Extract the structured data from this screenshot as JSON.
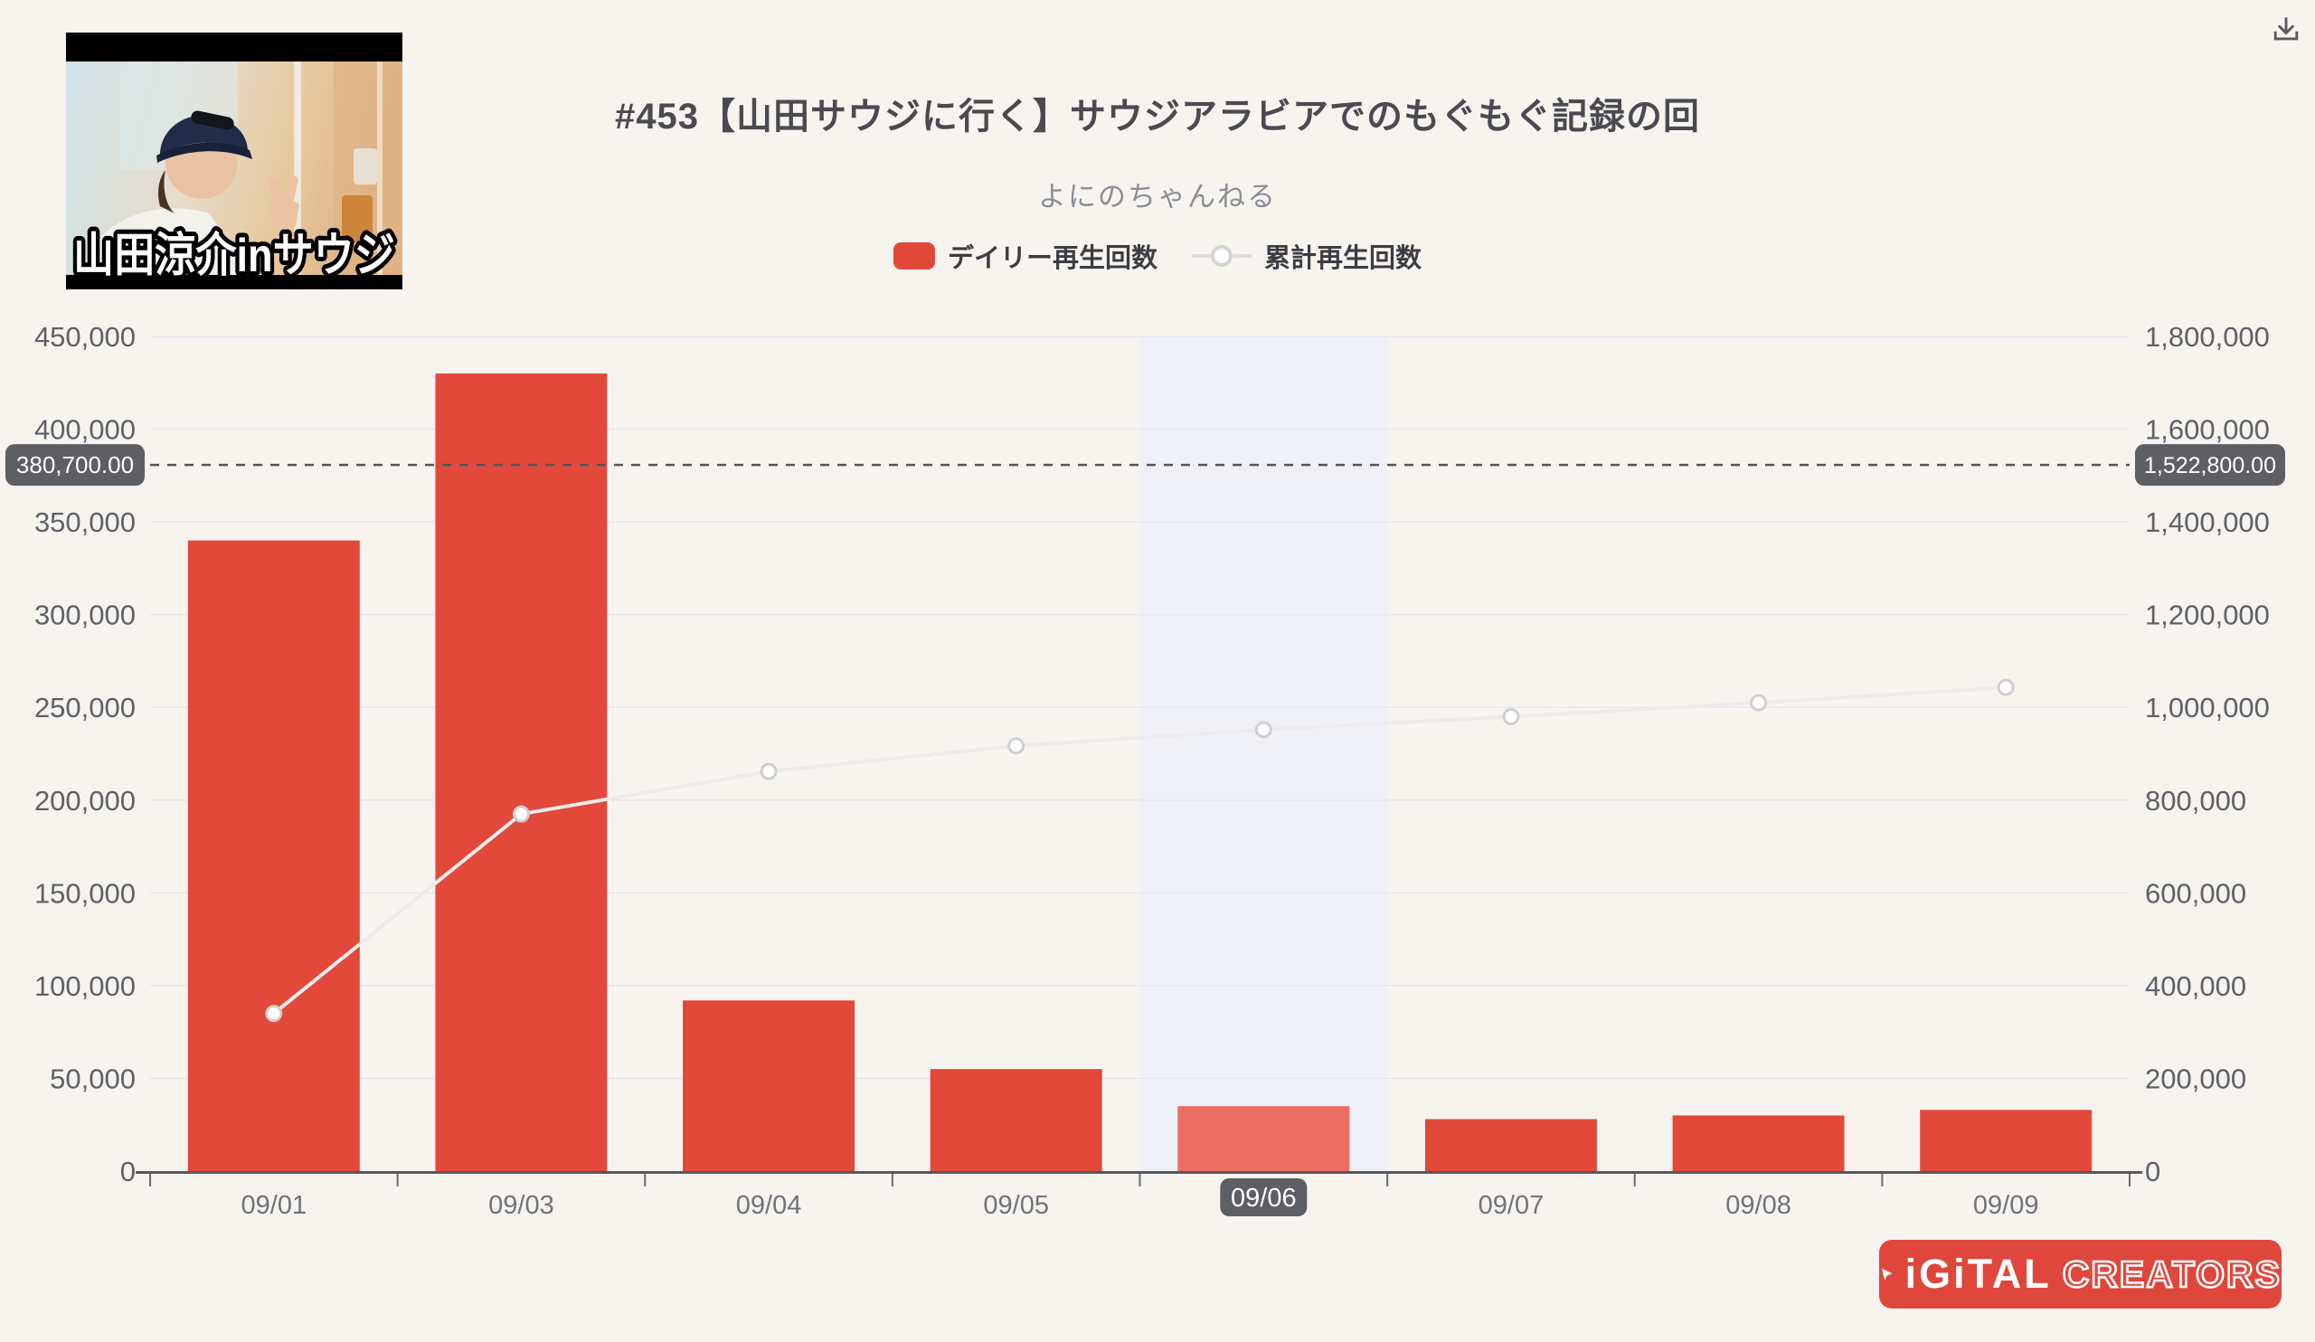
{
  "page": {
    "background": "#f7f4f0"
  },
  "header": {
    "title": "#453【山田サウジに行く】サウジアラビアでのもぐもぐ記録の回",
    "subtitle": "よにのちゃんねる",
    "download_icon": "download-icon",
    "icon_color": "#5a5b60"
  },
  "thumbnail": {
    "caption": "山田涼介inサウジ"
  },
  "legend": [
    {
      "label": "デイリー再生回数",
      "marker": "red-rounded-square",
      "color": "#e2493b"
    },
    {
      "label": "累計再生回数",
      "marker": "line-with-hollow-circle",
      "color": "#dcdcdc"
    }
  ],
  "brand": {
    "text_solid": "iGiTAL",
    "text_outline": "CREATORS",
    "icon": "play-cursor-icon",
    "background": "#e0473c"
  },
  "chart_data": {
    "type": "bar",
    "subtype": "bar-with-cumulative-line",
    "categories": [
      "09/01",
      "09/03",
      "09/04",
      "09/05",
      "09/06",
      "09/07",
      "09/08",
      "09/09"
    ],
    "series": [
      {
        "name": "デイリー再生回数",
        "type": "bar",
        "axis": "left",
        "color": "#e2493b",
        "highlight_color": "#ec6e63",
        "values": [
          340000,
          430000,
          92000,
          55000,
          35000,
          28000,
          30000,
          33000
        ]
      },
      {
        "name": "累計再生回数",
        "type": "line",
        "axis": "right",
        "color": "#ebebeb",
        "marker": "hollow-circle",
        "marker_fill": "#ffffff",
        "marker_stroke": "#cfcfcf",
        "values": [
          340000,
          770000,
          862000,
          917000,
          952000,
          980000,
          1010000,
          1043000
        ]
      }
    ],
    "left_axis": {
      "min": 0,
      "max": 450000,
      "step": 50000,
      "ticks": [
        "0",
        "50,000",
        "100,000",
        "150,000",
        "200,000",
        "250,000",
        "300,000",
        "350,000",
        "400,000",
        "450,000"
      ]
    },
    "right_axis": {
      "min": 0,
      "max": 1800000,
      "step": 200000,
      "ticks": [
        "0",
        "200,000",
        "400,000",
        "600,000",
        "800,000",
        "1,000,000",
        "1,200,000",
        "1,400,000",
        "1,600,000",
        "1,800,000"
      ]
    },
    "reference_line": {
      "left_value": 380700,
      "right_value": 1522800,
      "left_label": "380,700.00",
      "right_label": "1,522,800.00",
      "badge_bg": "#5d5f64",
      "badge_text_color": "#ffffff"
    },
    "highlighted_index": 4,
    "highlighted_category": "09/06",
    "hover_band_color": "#eef0f6",
    "grid": {
      "on": true,
      "color": "#e6e6f0"
    },
    "axis_line_color": "#57585c",
    "tick_label_color": "#5e6167",
    "x_label_color": "#707379",
    "legend_position": "top-center"
  }
}
